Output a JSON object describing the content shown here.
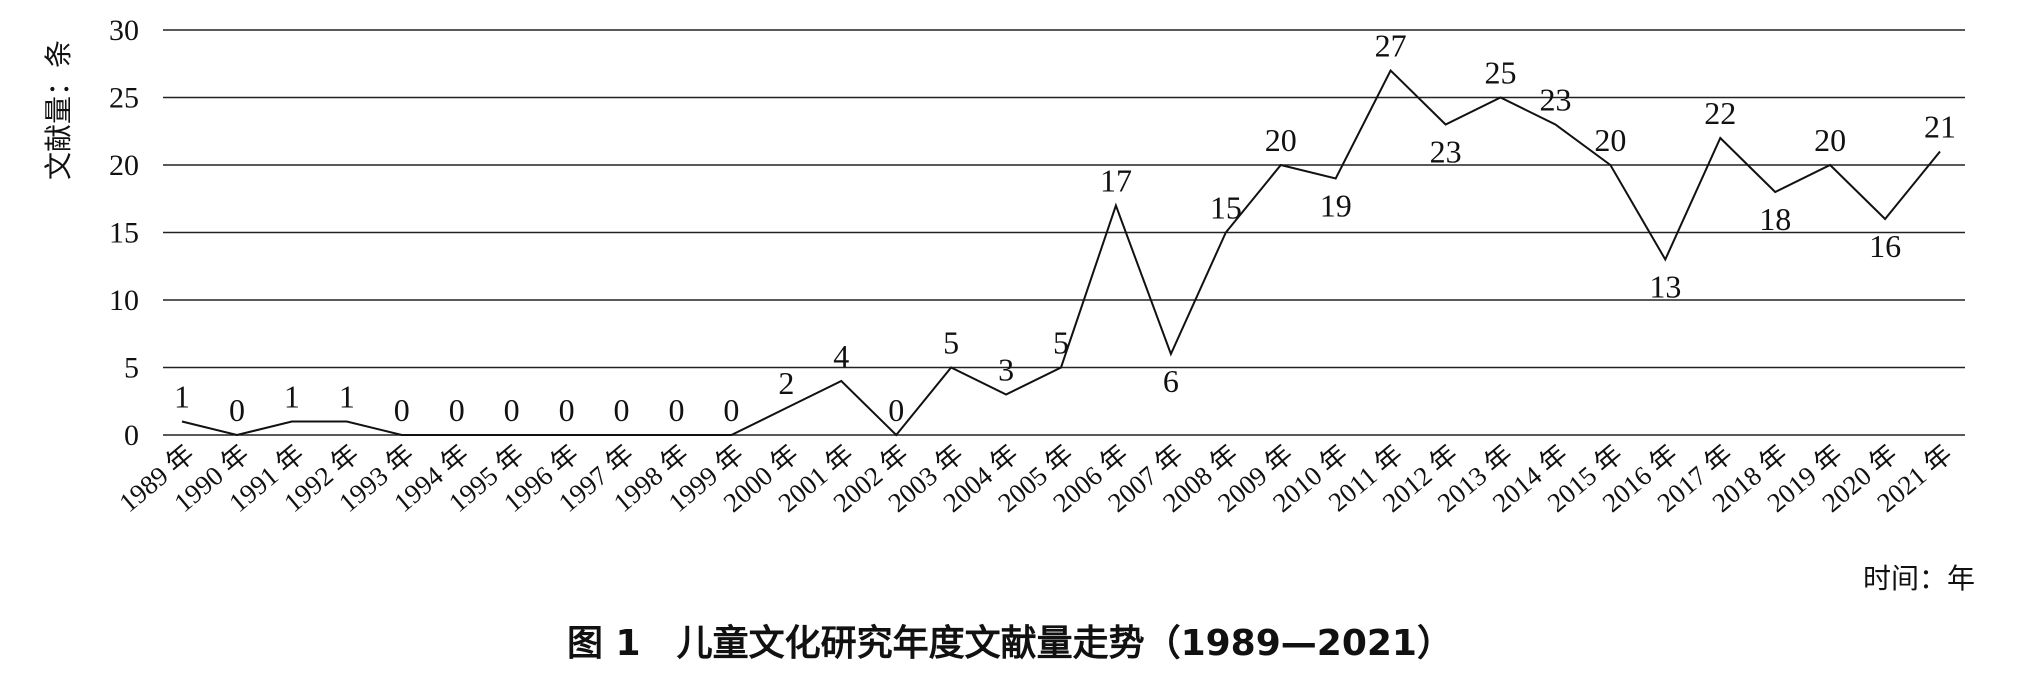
{
  "chart_data": {
    "type": "line",
    "ylabel": "文献量：条",
    "xlabel": "时间：年",
    "caption": "图 1　儿童文化研究年度文献量走势（1989—2021）",
    "ylim": [
      0,
      30
    ],
    "yticks": [
      0,
      5,
      10,
      15,
      20,
      25,
      30
    ],
    "grid": true,
    "categories": [
      "1989 年",
      "1990 年",
      "1991 年",
      "1992 年",
      "1993 年",
      "1994 年",
      "1995 年",
      "1996 年",
      "1997 年",
      "1998 年",
      "1999 年",
      "2000 年",
      "2001 年",
      "2002 年",
      "2003 年",
      "2004 年",
      "2005 年",
      "2006 年",
      "2007 年",
      "2008 年",
      "2009 年",
      "2010 年",
      "2011 年",
      "2012 年",
      "2013 年",
      "2014 年",
      "2015 年",
      "2016 年",
      "2017 年",
      "2018 年",
      "2019 年",
      "2020 年",
      "2021 年"
    ],
    "series": [
      {
        "values": [
          1,
          0,
          1,
          1,
          0,
          0,
          0,
          0,
          0,
          0,
          0,
          2,
          4,
          0,
          5,
          3,
          5,
          17,
          6,
          15,
          20,
          19,
          27,
          23,
          25,
          23,
          20,
          13,
          22,
          18,
          20,
          16,
          21
        ]
      }
    ],
    "value_labels": [
      "1",
      "0",
      "1",
      "1",
      "0",
      "0",
      "0",
      "0",
      "0",
      "0",
      "0",
      "2",
      "4",
      "0",
      "5",
      "3",
      "5",
      "17",
      "6",
      "15",
      "20",
      "19",
      "27",
      "23",
      "25",
      "23",
      "20",
      "13",
      "22",
      "18",
      "20",
      "16",
      "21"
    ]
  }
}
